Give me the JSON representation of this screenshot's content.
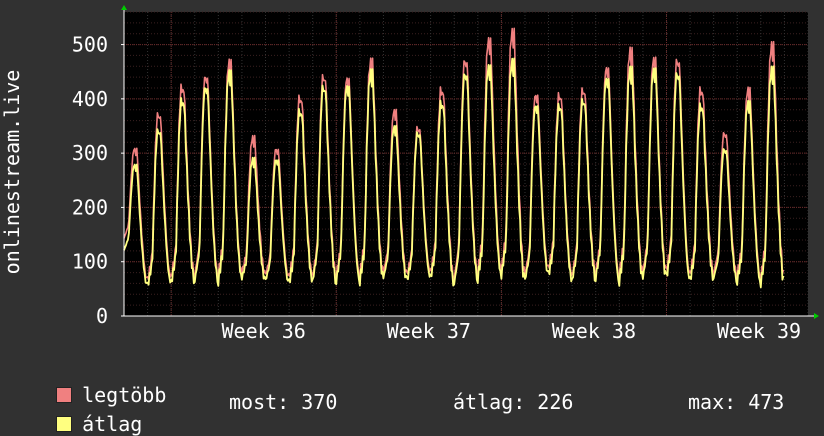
{
  "chart_data": {
    "type": "line",
    "ylabel": "onlinestream.live",
    "ylim": [
      0,
      560
    ],
    "yticks": [
      0,
      100,
      200,
      300,
      400,
      500
    ],
    "xlim": [
      0,
      29
    ],
    "xtick_labels": [
      {
        "label": "Week 36",
        "x": 6.0
      },
      {
        "label": "Week 37",
        "x": 13.0
      },
      {
        "label": "Week 38",
        "x": 20.0
      },
      {
        "label": "Week 39",
        "x": 27.0
      }
    ],
    "grid": true,
    "series": [
      {
        "name": "legtöbb",
        "color": "#f08080",
        "peaks": [
          310,
          375,
          425,
          445,
          470,
          330,
          310,
          405,
          445,
          440,
          470,
          380,
          350,
          420,
          475,
          510,
          525,
          410,
          410,
          420,
          460,
          490,
          475,
          475,
          420,
          340,
          420,
          500
        ],
        "troughs": [
          65,
          70,
          75,
          75,
          80,
          75,
          70,
          75,
          75,
          75,
          80,
          75,
          80,
          70,
          80,
          85,
          75,
          85,
          75,
          80,
          75,
          80,
          80,
          75,
          80,
          75,
          70
        ]
      },
      {
        "name": "átlag",
        "color": "#ffff80",
        "peaks": [
          280,
          345,
          400,
          425,
          450,
          290,
          290,
          380,
          425,
          425,
          450,
          350,
          340,
          395,
          450,
          460,
          470,
          390,
          390,
          400,
          440,
          455,
          455,
          450,
          390,
          310,
          395,
          455
        ],
        "troughs": [
          55,
          60,
          65,
          65,
          70,
          65,
          60,
          65,
          65,
          65,
          70,
          65,
          70,
          60,
          70,
          75,
          65,
          75,
          65,
          70,
          65,
          70,
          70,
          65,
          70,
          65,
          60
        ]
      }
    ]
  },
  "legend": {
    "items": [
      {
        "label": "legtöbb",
        "color": "#f08080"
      },
      {
        "label": "átlag",
        "color": "#ffff80"
      }
    ],
    "stats": {
      "most": "most: 370",
      "atlag": "átlag: 226",
      "max": "max: 473"
    }
  }
}
